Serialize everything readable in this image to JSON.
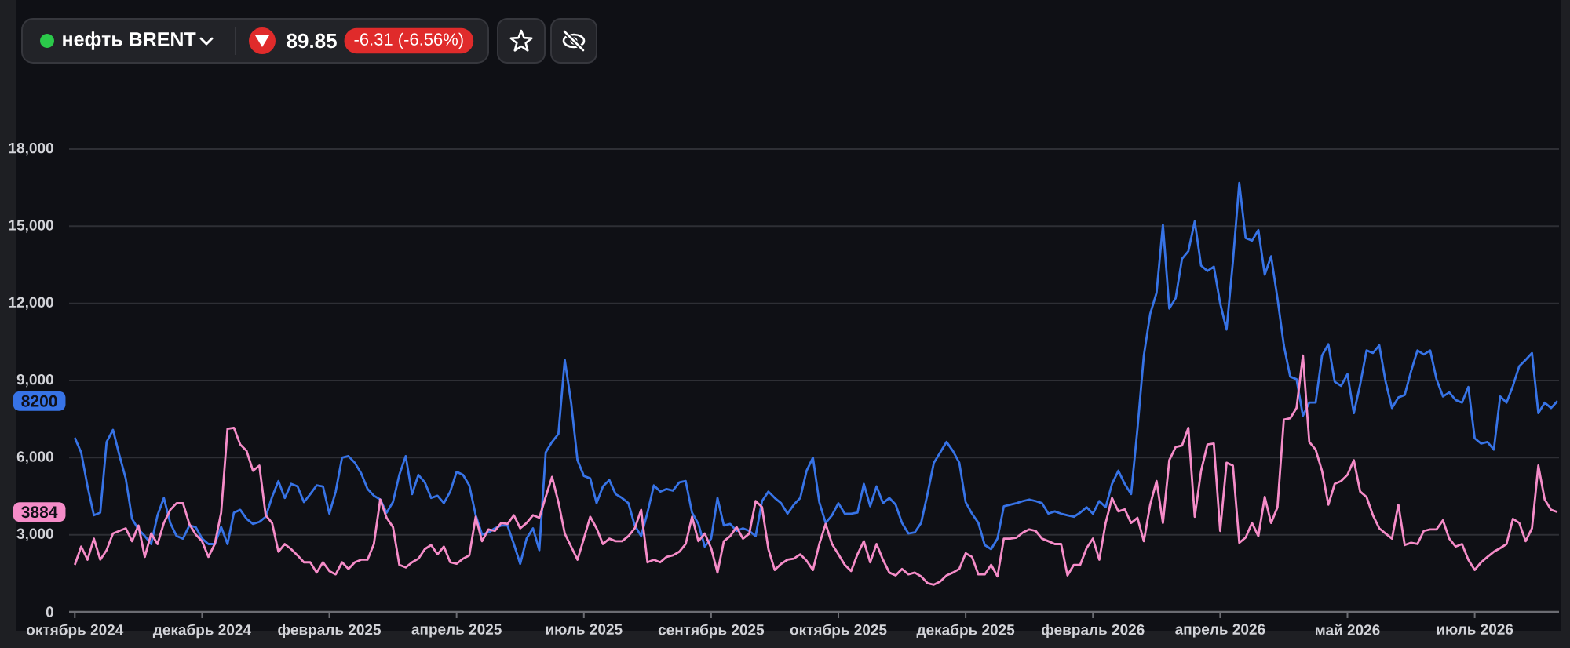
{
  "chart_data": {
    "type": "line",
    "title": "нефть BRENT",
    "annotations": [
      "89.85",
      "-6.31 (-6.56%)",
      {
        "text": "8200",
        "y": 8200
      },
      {
        "text": "3884",
        "y": 3884
      }
    ],
    "categories": [
      "октябрь 2024",
      null,
      null,
      null,
      null,
      null,
      null,
      null,
      null,
      null,
      null,
      null,
      null,
      null,
      null,
      null,
      null,
      null,
      null,
      null,
      "декабрь 2024",
      null,
      null,
      null,
      null,
      null,
      null,
      null,
      null,
      null,
      null,
      null,
      null,
      null,
      null,
      null,
      null,
      null,
      null,
      null,
      "февраль 2025",
      null,
      null,
      null,
      null,
      null,
      null,
      null,
      null,
      null,
      null,
      null,
      null,
      null,
      null,
      null,
      null,
      null,
      null,
      null,
      "апрель 2025",
      null,
      null,
      null,
      null,
      null,
      null,
      null,
      null,
      null,
      null,
      null,
      null,
      null,
      null,
      null,
      null,
      null,
      null,
      null,
      "июль 2025",
      null,
      null,
      null,
      null,
      null,
      null,
      null,
      null,
      null,
      null,
      null,
      null,
      null,
      null,
      null,
      null,
      null,
      null,
      null,
      "сентябрь 2025",
      null,
      null,
      null,
      null,
      null,
      null,
      null,
      null,
      null,
      null,
      null,
      null,
      null,
      null,
      null,
      null,
      null,
      null,
      null,
      "октябрь 2025",
      null,
      null,
      null,
      null,
      null,
      null,
      null,
      null,
      null,
      null,
      null,
      null,
      null,
      null,
      null,
      null,
      null,
      null,
      null,
      "декабрь 2025",
      null,
      null,
      null,
      null,
      null,
      null,
      null,
      null,
      null,
      null,
      null,
      null,
      null,
      null,
      null,
      null,
      null,
      null,
      null,
      "февраль 2026",
      null,
      null,
      null,
      null,
      null,
      null,
      null,
      null,
      null,
      null,
      null,
      null,
      null,
      null,
      null,
      null,
      null,
      null,
      null,
      "апрель 2026",
      null,
      null,
      null,
      null,
      null,
      null,
      null,
      null,
      null,
      null,
      null,
      null,
      null,
      null,
      null,
      null,
      null,
      null,
      null,
      "май 2026",
      null,
      null,
      null,
      null,
      null,
      null,
      null,
      null,
      null,
      null,
      null,
      null,
      null,
      null,
      null,
      null,
      null,
      null,
      null,
      "июль 2026",
      null,
      null,
      null,
      null,
      null,
      null,
      null,
      null,
      null,
      null,
      null,
      null,
      null
    ],
    "ylim": [
      0,
      18000
    ],
    "yticks": [
      0,
      {
        "value": 3000,
        "label": "3,000"
      },
      {
        "value": 6000,
        "label": "6,000"
      },
      {
        "value": 9000,
        "label": "9,000"
      },
      {
        "value": 12000,
        "label": "12,000"
      },
      {
        "value": 15000,
        "label": "15,000"
      },
      {
        "value": 18000,
        "label": "18,000"
      }
    ],
    "grid": "y",
    "series": [
      {
        "color": "#3773e6",
        "values": [
          6770,
          6200,
          4880,
          3760,
          3860,
          6610,
          7080,
          6100,
          5190,
          3620,
          3210,
          2950,
          2640,
          3760,
          4430,
          3460,
          2950,
          2850,
          3360,
          3300,
          2850,
          2640,
          2640,
          3300,
          2640,
          3860,
          3970,
          3620,
          3420,
          3500,
          3700,
          4470,
          5090,
          4430,
          4980,
          4880,
          4270,
          4580,
          4920,
          4880,
          3820,
          4680,
          6000,
          6060,
          5800,
          5390,
          4780,
          4520,
          4370,
          3860,
          4270,
          5330,
          6060,
          4580,
          5330,
          5040,
          4430,
          4520,
          4230,
          4680,
          5450,
          5330,
          4920,
          3760,
          3010,
          3090,
          3250,
          3360,
          3360,
          2640,
          1870,
          2850,
          3250,
          2400,
          6200,
          6610,
          6920,
          9800,
          8140,
          5900,
          5290,
          5190,
          4230,
          4880,
          5130,
          4580,
          4430,
          4230,
          3360,
          2950,
          3860,
          4920,
          4680,
          4780,
          4720,
          5040,
          5090,
          3860,
          3420,
          2540,
          2850,
          4430,
          3360,
          3420,
          3150,
          3250,
          3150,
          2950,
          4310,
          4680,
          4430,
          4230,
          3820,
          4170,
          4430,
          5490,
          6000,
          4270,
          3460,
          3760,
          4230,
          3820,
          3820,
          3860,
          4980,
          4110,
          4880,
          4230,
          4430,
          4170,
          3460,
          3050,
          3090,
          3460,
          4580,
          5800,
          6200,
          6610,
          6260,
          5800,
          4270,
          3820,
          3460,
          2600,
          2440,
          2850,
          4110,
          4170,
          4230,
          4310,
          4370,
          4310,
          4230,
          3820,
          3910,
          3820,
          3760,
          3700,
          3860,
          4070,
          3820,
          4310,
          4070,
          4980,
          5490,
          4980,
          4580,
          7120,
          9970,
          11590,
          12410,
          15050,
          11800,
          12200,
          13730,
          14030,
          15190,
          13470,
          13260,
          13430,
          12000,
          10980,
          13630,
          16680,
          14540,
          14440,
          14850,
          13120,
          13830,
          12200,
          10370,
          9150,
          9050,
          7630,
          8140,
          8140,
          9970,
          10410,
          8950,
          8790,
          9250,
          7730,
          8850,
          10170,
          10070,
          10370,
          8950,
          7930,
          8340,
          8440,
          9360,
          10170,
          10010,
          10170,
          9050,
          8380,
          8540,
          8240,
          8140,
          8750,
          6750,
          6550,
          6610,
          6310,
          8380,
          8140,
          8790,
          9560,
          9800,
          10070,
          7730,
          8140,
          7930,
          8200
        ]
      },
      {
        "color": "#f58cc8",
        "values": [
          1830,
          2540,
          2030,
          2850,
          2030,
          2400,
          3050,
          3150,
          3250,
          2750,
          3360,
          2140,
          3050,
          2640,
          3460,
          3970,
          4230,
          4230,
          3420,
          3010,
          2750,
          2140,
          2640,
          3860,
          7120,
          7160,
          6510,
          6260,
          5490,
          5690,
          3760,
          3460,
          2340,
          2640,
          2440,
          2200,
          1930,
          1930,
          1530,
          1930,
          1590,
          1460,
          1930,
          1670,
          1930,
          2030,
          2030,
          2640,
          4370,
          3660,
          3300,
          1830,
          1730,
          1930,
          2070,
          2440,
          2600,
          2240,
          2540,
          1930,
          1870,
          2070,
          2200,
          3700,
          2750,
          3210,
          3150,
          3460,
          3420,
          3760,
          3250,
          3460,
          3760,
          3660,
          4470,
          5250,
          4270,
          3050,
          2540,
          2030,
          2850,
          3700,
          3250,
          2640,
          2850,
          2750,
          2750,
          2950,
          3250,
          3970,
          1930,
          2030,
          1930,
          2140,
          2200,
          2340,
          2640,
          3700,
          2750,
          3050,
          2480,
          1530,
          2750,
          2950,
          3300,
          2850,
          3050,
          4310,
          4070,
          2440,
          1630,
          1870,
          2030,
          2070,
          2240,
          1990,
          1630,
          2640,
          3420,
          2640,
          2240,
          1830,
          1590,
          2240,
          2750,
          1930,
          2640,
          2030,
          1530,
          1420,
          1670,
          1460,
          1530,
          1380,
          1120,
          1060,
          1180,
          1420,
          1530,
          1670,
          2280,
          2140,
          1460,
          1460,
          1830,
          1380,
          2850,
          2850,
          2890,
          3090,
          3210,
          3150,
          2850,
          2750,
          2640,
          2640,
          1420,
          1830,
          1830,
          2480,
          2850,
          2030,
          3460,
          4430,
          3910,
          3990,
          3460,
          3660,
          2750,
          4170,
          5090,
          3460,
          5900,
          6410,
          6470,
          7160,
          3700,
          5490,
          6510,
          6550,
          3150,
          5800,
          5690,
          2690,
          2890,
          3460,
          2950,
          4470,
          3460,
          4070,
          7480,
          7530,
          7930,
          9970,
          6610,
          6310,
          5490,
          4170,
          4980,
          5090,
          5330,
          5900,
          4680,
          4470,
          3760,
          3250,
          3050,
          2850,
          4170,
          2600,
          2690,
          2640,
          3150,
          3210,
          3210,
          3560,
          2850,
          2540,
          2640,
          2030,
          1630,
          1930,
          2140,
          2340,
          2480,
          2640,
          3620,
          3460,
          2750,
          3250,
          5690,
          4370,
          3970,
          3884
        ]
      }
    ]
  }
}
